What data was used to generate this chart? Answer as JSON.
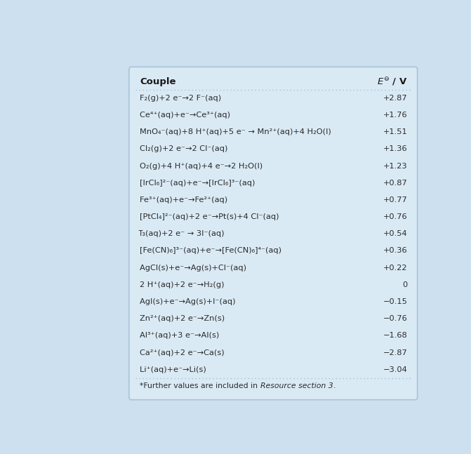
{
  "background_color": "#cde0ef",
  "table_bg": "#daeaf5",
  "border_color": "#a8c4d8",
  "header_text_color": "#1a1a1a",
  "body_text_color": "#2a2a2a",
  "title": "Couple",
  "rows": [
    [
      "αF₂(g)​+2 e⁻→​2 F⁻(aq)",
      "+2.87"
    ],
    [
      "Ce⁴⁺(aq)​+e⁻→​Ce³⁺(aq)",
      "+1.76"
    ],
    [
      "MnO₄⁻(aq)​+8 H⁺(aq)​+5 e⁻ → Mn²⁺(aq)​+4 H₂O(l)",
      "+1.51"
    ],
    [
      "Cl₂(g)​+2 e⁻→​2 Cl⁻(aq)",
      "+1.36"
    ],
    [
      "O₂(g)​+4 H⁺(aq)​+4 e⁻→​2 H₂O(l)",
      "+1.23"
    ],
    [
      "[IrCl₆]²⁻(aq)​+e⁻→​[IrCl₆]³⁻(aq)",
      "+0.87"
    ],
    [
      "Fe³⁺(aq)​+e⁻→​Fe²⁺(aq)",
      "+0.77"
    ],
    [
      "[PtCl₄]²⁻(aq)​+2 e⁻→​Pt(s)​+4 Cl⁻(aq)",
      "+0.76"
    ],
    [
      "I̅₃(aq)​+2 e⁻ → 3I⁻(aq)",
      "+0.54"
    ],
    [
      "[Fe(CN)₆]³⁻(aq)​+e⁻→​[Fe(CN)₆]⁴⁻(aq)",
      "+0.36"
    ],
    [
      "AgCl(s)​+e⁻→​Ag(s)​+Cl⁻(aq)",
      "+0.22"
    ],
    [
      "2 H⁺(aq)​+2 e⁻→​H₂(g)",
      "0"
    ],
    [
      "AgI(s)​+e⁻→​Ag(s)​+I⁻(aq)",
      "−0.15"
    ],
    [
      "Zn²⁺(aq)​+2 e⁻→​Zn(s)",
      "−0.76"
    ],
    [
      "Al³⁺(aq)​+3 e⁻→​Al(s)",
      "−1.68"
    ],
    [
      "Ca²⁺(aq)​+2 e⁻→​Ca(s)",
      "−2.87"
    ],
    [
      "Li⁺(aq)​+e⁻→​Li(s)",
      "−3.04"
    ]
  ],
  "footnote_plain": "*Further values are included in ",
  "footnote_italic": "Resource section 3",
  "footnote_end": "."
}
